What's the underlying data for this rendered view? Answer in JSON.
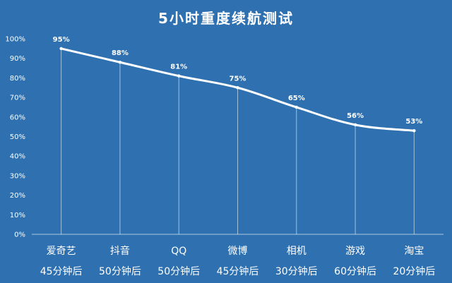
{
  "chart_data": {
    "type": "line",
    "title": "5小时重度续航测试",
    "categories": [
      "爱奇艺",
      "抖音",
      "QQ",
      "微博",
      "相机",
      "游戏",
      "淘宝"
    ],
    "subcategories": [
      "45分钟后",
      "50分钟后",
      "50分钟后",
      "45分钟后",
      "30分钟后",
      "60分钟后",
      "20分钟后"
    ],
    "series": [
      {
        "values": [
          95,
          88,
          81,
          75,
          65,
          56,
          53
        ]
      }
    ],
    "data_labels": [
      "95%",
      "88%",
      "81%",
      "75%",
      "65%",
      "56%",
      "53%"
    ],
    "yticks": [
      "0%",
      "10%",
      "20%",
      "30%",
      "40%",
      "50%",
      "60%",
      "70%",
      "80%",
      "90%",
      "100%"
    ],
    "ylim": [
      0,
      100
    ],
    "grid": false,
    "colors": {
      "background": "#2f71b0",
      "line": "#ffffff"
    }
  }
}
